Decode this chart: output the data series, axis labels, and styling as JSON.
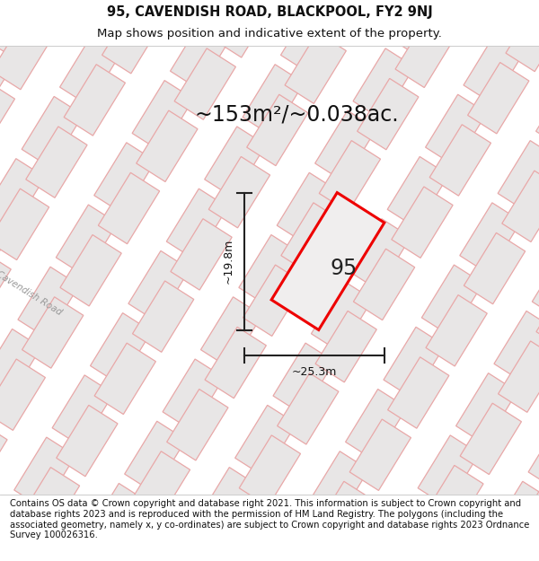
{
  "title_line1": "95, CAVENDISH ROAD, BLACKPOOL, FY2 9NJ",
  "title_line2": "Map shows position and indicative extent of the property.",
  "footer_text": "Contains OS data © Crown copyright and database right 2021. This information is subject to Crown copyright and database rights 2023 and is reproduced with the permission of HM Land Registry. The polygons (including the associated geometry, namely x, y co-ordinates) are subject to Crown copyright and database rights 2023 Ordnance Survey 100026316.",
  "area_text": "~153m²/~0.038ac.",
  "property_number": "95",
  "dim_width": "~25.3m",
  "dim_height": "~19.8m",
  "road_label": "Cavendish Road",
  "bg_color": "#ffffff",
  "map_bg": "#f7f6f6",
  "block_fill": "#e8e6e6",
  "block_edge": "#e8a8a8",
  "property_fill": "#f0eeee",
  "property_edge": "#ee0000",
  "dim_color": "#222222",
  "title_fontsize": 10.5,
  "subtitle_fontsize": 9.5,
  "footer_fontsize": 7.2,
  "area_fontsize": 17,
  "number_fontsize": 17,
  "dim_fontsize": 9
}
